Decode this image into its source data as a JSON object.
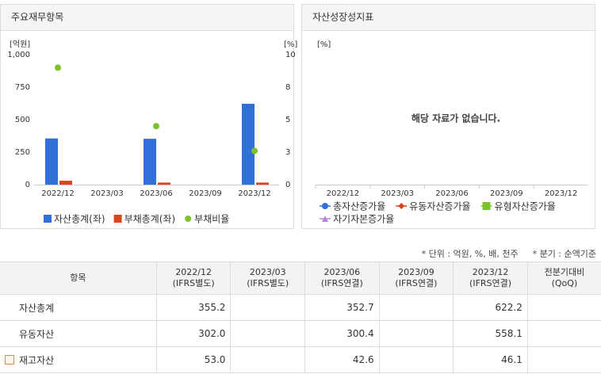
{
  "chart_data": [
    {
      "type": "bar",
      "title": "주요재무항목",
      "ylabel": "[억원]",
      "y2label": "[%]",
      "categories": [
        "2022/12",
        "2023/03",
        "2023/06",
        "2023/09",
        "2023/12"
      ],
      "series": [
        {
          "name": "자산총계(좌)",
          "color": "#2f6fd6",
          "values": [
            355.2,
            null,
            352.7,
            null,
            622.2
          ]
        },
        {
          "name": "부채총계(좌)",
          "color": "#d9451c",
          "values": [
            30,
            null,
            16,
            null,
            16
          ]
        },
        {
          "name": "부채비율",
          "color": "#7cc22a",
          "axis": "y2",
          "marker": "dot",
          "values": [
            9.0,
            null,
            4.5,
            null,
            2.6
          ]
        }
      ],
      "ylim": [
        0,
        1000
      ],
      "yticks": [
        0,
        250,
        500,
        750,
        {
          "value": 1000,
          "label": "1,000"
        }
      ],
      "y2lim": [
        0,
        10
      ],
      "y2ticks": [
        0,
        {
          "value": 2.5,
          "label": "3"
        },
        5,
        {
          "value": 7.5,
          "label": "8"
        },
        10
      ],
      "grid": false
    },
    {
      "type": "line",
      "title": "자산성장성지표",
      "ylabel": "[%]",
      "message": "해당 자료가 없습니다.",
      "categories": [
        "2022/12",
        "2023/03",
        "2023/06",
        "2023/09",
        "2023/12"
      ],
      "series": [
        {
          "name": "총자산증가율",
          "color": "#2f6fd6",
          "marker": "circle",
          "values": [
            null,
            null,
            null,
            null,
            null
          ]
        },
        {
          "name": "유동자산증가율",
          "color": "#d9451c",
          "marker": "diamond",
          "values": [
            null,
            null,
            null,
            null,
            null
          ]
        },
        {
          "name": "유형자산증가율",
          "color": "#7cc22a",
          "marker": "square",
          "values": [
            null,
            null,
            null,
            null,
            null
          ]
        },
        {
          "name": "자기자본증가율",
          "color": "#b48ad8",
          "marker": "triangle",
          "values": [
            null,
            null,
            null,
            null,
            null
          ]
        }
      ]
    }
  ],
  "table": {
    "notes": [
      "* 단위 : 억원, %, 배, 천주",
      "* 분기 : 순액기준"
    ],
    "header": [
      "항목",
      [
        "2022/12",
        "(IFRS별도)"
      ],
      [
        "2023/03",
        "(IFRS별도)"
      ],
      [
        "2023/06",
        "(IFRS연결)"
      ],
      [
        "2023/09",
        "(IFRS연결)"
      ],
      [
        "2023/12",
        "(IFRS연결)"
      ],
      [
        "전분기대비",
        "(QoQ)"
      ]
    ],
    "rows": [
      [
        "자산총계",
        "355.2",
        null,
        "352.7",
        null,
        "622.2",
        null
      ],
      [
        "유동자산",
        "302.0",
        null,
        "300.4",
        null,
        "558.1",
        null
      ],
      [
        "재고자산",
        "53.0",
        null,
        "42.6",
        null,
        "46.1",
        null
      ]
    ]
  }
}
